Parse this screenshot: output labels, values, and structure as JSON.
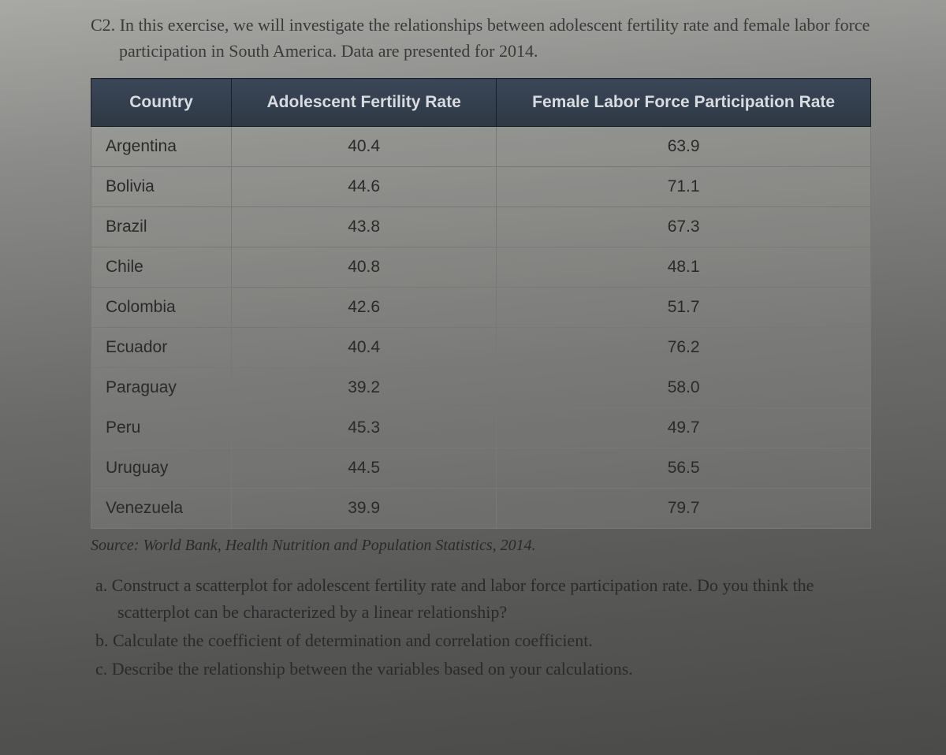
{
  "exercise": {
    "number": "C2.",
    "intro": "In this exercise, we will investigate the relationships between adolescent fertility rate and female labor force participation in South America. Data are presented for 2014."
  },
  "table": {
    "columns": [
      "Country",
      "Adolescent Fertility Rate",
      "Female Labor Force Participation Rate"
    ],
    "rows": [
      [
        "Argentina",
        "40.4",
        "63.9"
      ],
      [
        "Bolivia",
        "44.6",
        "71.1"
      ],
      [
        "Brazil",
        "43.8",
        "67.3"
      ],
      [
        "Chile",
        "40.8",
        "48.1"
      ],
      [
        "Colombia",
        "42.6",
        "51.7"
      ],
      [
        "Ecuador",
        "40.4",
        "76.2"
      ],
      [
        "Paraguay",
        "39.2",
        "58.0"
      ],
      [
        "Peru",
        "45.3",
        "49.7"
      ],
      [
        "Uruguay",
        "44.5",
        "56.5"
      ],
      [
        "Venezuela",
        "39.9",
        "79.7"
      ]
    ],
    "header_bg": "#2e3844",
    "header_color": "#d8dce0",
    "border_color": "#787876",
    "cell_fontsize": 21
  },
  "source": {
    "label": "Source:",
    "text": "World Bank, Health Nutrition and Population Statistics, 2014."
  },
  "questions": [
    {
      "letter": "a.",
      "text": "Construct a scatterplot for adolescent fertility rate and labor force participation rate. Do you think the scatterplot can be characterized by a linear relationship?"
    },
    {
      "letter": "b.",
      "text": "Calculate the coefficient of determination and correlation coefficient."
    },
    {
      "letter": "c.",
      "text": "Describe the relationship between the variables based on your calculations."
    }
  ]
}
